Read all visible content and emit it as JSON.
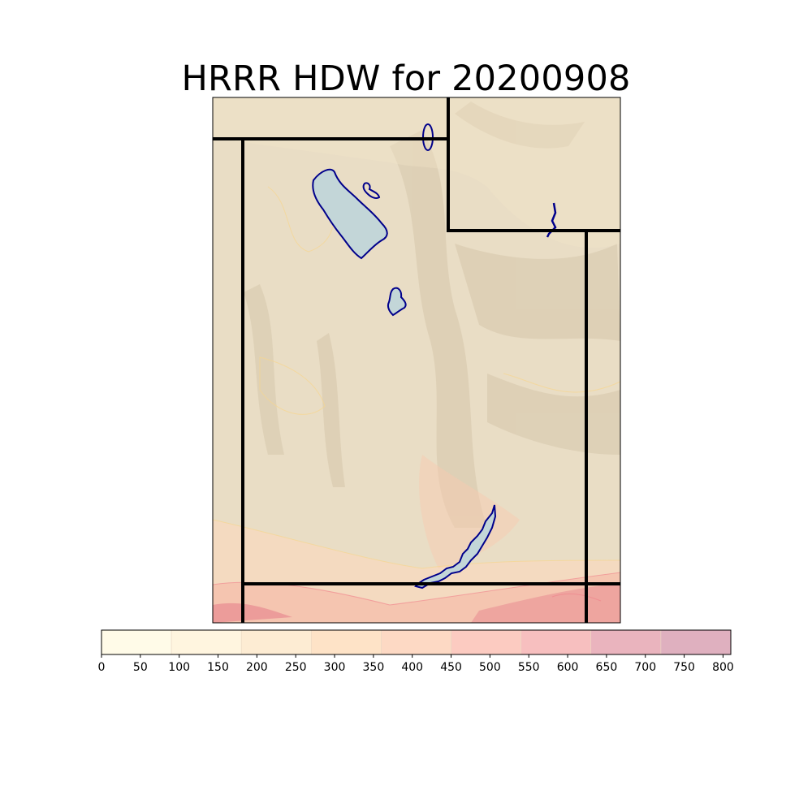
{
  "title": "HRRR HDW for 20200908",
  "colorbar": {
    "tick_labels": [
      "0",
      "50",
      "100",
      "150",
      "200",
      "250",
      "300",
      "350",
      "400",
      "450",
      "500",
      "550",
      "600",
      "650",
      "700",
      "750",
      "800"
    ],
    "bands": [
      {
        "value_min": 0,
        "value_max": 90,
        "color": "#fffbe8"
      },
      {
        "value_min": 90,
        "value_max": 180,
        "color": "#fff5df"
      },
      {
        "value_min": 180,
        "value_max": 270,
        "color": "#fdecd3"
      },
      {
        "value_min": 270,
        "value_max": 360,
        "color": "#fee3c7"
      },
      {
        "value_min": 360,
        "value_max": 450,
        "color": "#fdd9c4"
      },
      {
        "value_min": 450,
        "value_max": 540,
        "color": "#fccbc1"
      },
      {
        "value_min": 540,
        "value_max": 630,
        "color": "#f7bfbf"
      },
      {
        "value_min": 630,
        "value_max": 720,
        "color": "#eab4be"
      },
      {
        "value_min": 720,
        "value_max": 810,
        "color": "#dfb0bf"
      }
    ]
  },
  "colors": {
    "terrain": "#e8dcc3",
    "lake_fill": "#c2d6d6",
    "lake_outline": "#00008b",
    "border": "#000000",
    "hdw_low": "#fde8c8",
    "hdw_high": "#f28a92"
  }
}
